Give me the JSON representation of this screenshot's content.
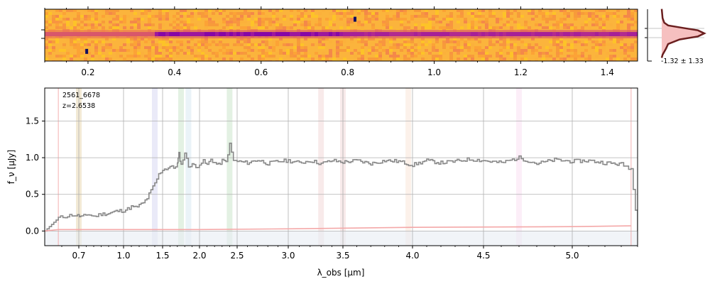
{
  "chart_data": [
    {
      "type": "heatmap",
      "name": "2d-spectrum",
      "x_ticks": [
        0.2,
        0.4,
        0.6,
        0.8,
        1.0,
        1.2,
        1.4
      ],
      "xlim": [
        0.1,
        1.47
      ],
      "colormap": "plasma",
      "grid": false,
      "features": [
        {
          "kind": "trace",
          "row_fraction": 0.48
        },
        {
          "kind": "artifact",
          "x": 0.817,
          "row_fraction": 0.2,
          "color": "#101060"
        },
        {
          "kind": "artifact",
          "x": 0.197,
          "row_fraction": 0.82,
          "color": "#101060"
        }
      ]
    },
    {
      "type": "line",
      "name": "spatial-profile",
      "annotation": "-1.32 ± 1.33",
      "series": [
        {
          "name": "",
          "color": "#6b1f1f",
          "x": [
            0,
            0.02,
            0.1,
            0.15,
            0.42,
            0.85,
            1.0,
            0.85,
            0.5,
            0.15,
            0.06,
            0.02,
            0
          ],
          "y": [
            -8,
            -7,
            -5,
            -3.5,
            -2,
            -1,
            0,
            1,
            1.8,
            2.6,
            3.5,
            5,
            8
          ]
        }
      ]
    },
    {
      "type": "line",
      "name": "1d-spectrum",
      "text_lines": [
        "2561_6678",
        "z=2.6538"
      ],
      "xlabel": "λ_obs [μm]",
      "ylabel": "f_ν [μJy]",
      "xlim": [
        0.6,
        5.4
      ],
      "ylim": [
        -0.2,
        1.95
      ],
      "x_ticks": [
        0.7,
        1.0,
        1.5,
        2.0,
        2.5,
        3.0,
        3.5,
        4.0,
        4.5,
        5.0
      ],
      "y_ticks": [
        0.0,
        0.5,
        1.0,
        1.5
      ],
      "grid": true,
      "line_markers": [
        {
          "x": 0.7,
          "color": "#c8a040"
        },
        {
          "x": 1.4,
          "color": "#a0a0e0"
        },
        {
          "x": 1.75,
          "color": "#80c080"
        },
        {
          "x": 1.85,
          "color": "#a0c8e0"
        },
        {
          "x": 2.4,
          "color": "#80c080"
        },
        {
          "x": 3.3,
          "color": "#e0a0a0"
        },
        {
          "x": 3.5,
          "color": "#e0a0a0"
        },
        {
          "x": 3.97,
          "color": "#f0c0a0"
        },
        {
          "x": 4.7,
          "color": "#f0b0e0"
        }
      ],
      "series": [
        {
          "name": "",
          "color": "#888888",
          "x": [
            0.6,
            0.64,
            0.68,
            0.72,
            0.76,
            0.8,
            0.85,
            0.9,
            0.95,
            1.0,
            1.05,
            1.1,
            1.15,
            1.2,
            1.25,
            1.3,
            1.35,
            1.4,
            1.45,
            1.5,
            1.55,
            1.6,
            1.65,
            1.7,
            1.72,
            1.75,
            1.8,
            1.85,
            1.9,
            1.95,
            2.0,
            2.05,
            2.1,
            2.15,
            2.2,
            2.25,
            2.3,
            2.35,
            2.4,
            2.45,
            2.5,
            2.6,
            2.7,
            2.8,
            2.9,
            3.0,
            3.1,
            3.2,
            3.3,
            3.4,
            3.5,
            3.6,
            3.7,
            3.8,
            3.9,
            4.0,
            4.1,
            4.2,
            4.3,
            4.4,
            4.5,
            4.6,
            4.7,
            4.8,
            4.9,
            5.0,
            5.1,
            5.2,
            5.3,
            5.33,
            5.36,
            5.4
          ],
          "y": [
            0.0,
            0.18,
            0.22,
            0.19,
            0.23,
            0.2,
            0.23,
            0.24,
            0.27,
            0.28,
            0.3,
            0.33,
            0.32,
            0.35,
            0.38,
            0.45,
            0.55,
            0.65,
            0.77,
            0.84,
            0.85,
            0.88,
            0.86,
            0.92,
            1.05,
            0.9,
            1.07,
            0.88,
            0.92,
            0.86,
            0.92,
            0.95,
            0.9,
            0.98,
            0.93,
            0.9,
            0.96,
            0.94,
            1.18,
            0.96,
            0.95,
            0.93,
            0.97,
            0.92,
            0.95,
            0.96,
            0.93,
            0.96,
            0.92,
            0.96,
            0.94,
            0.96,
            0.92,
            0.96,
            0.95,
            0.9,
            0.96,
            0.93,
            0.95,
            0.98,
            0.96,
            0.93,
            1.0,
            0.92,
            0.97,
            0.95,
            0.96,
            0.93,
            0.91,
            0.88,
            0.85,
            0.0
          ]
        },
        {
          "name": "",
          "color": "#f4a8a8",
          "x": [
            0.6,
            0.64,
            1.0,
            2.0,
            3.0,
            4.0,
            5.0,
            5.36
          ],
          "y": [
            0.0,
            0.02,
            0.02,
            0.02,
            0.03,
            0.05,
            0.06,
            0.07
          ]
        }
      ]
    }
  ]
}
